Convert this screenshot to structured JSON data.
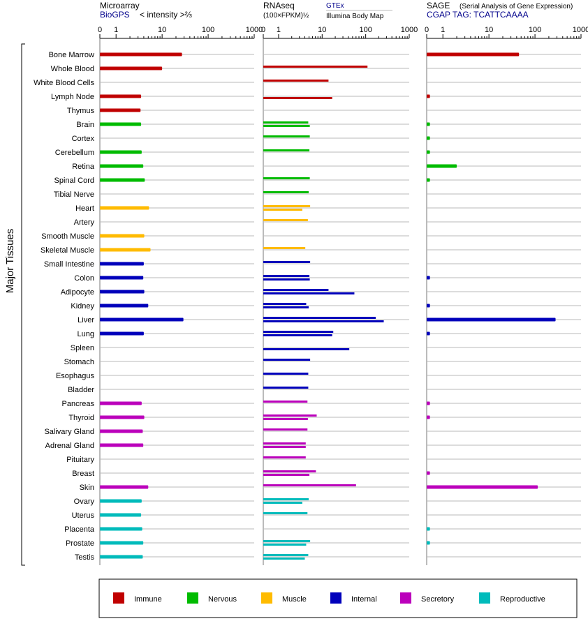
{
  "row_axis_label": "Major Tissues",
  "panels": [
    {
      "title": "Microarray",
      "subtitle_link": "BioGPS",
      "subtitle_text": "< intensity >⅔",
      "extra_top": "",
      "extra_bottom": ""
    },
    {
      "title": "RNAseq",
      "subtitle_link": "",
      "subtitle_text": "(100×FPKM)½",
      "extra_top": "GTEx",
      "extra_bottom": "Illumina Body Map"
    },
    {
      "title": "SAGE",
      "subtitle_link": "CGAP TAG: TCATTCAAAA",
      "subtitle_text": "",
      "extra_top": "(Serial Analysis of Gene Expression)",
      "extra_bottom": ""
    }
  ],
  "legend": [
    {
      "name": "Immune",
      "color": "#c00000"
    },
    {
      "name": "Nervous",
      "color": "#00bb00"
    },
    {
      "name": "Muscle",
      "color": "#ffbb00"
    },
    {
      "name": "Internal",
      "color": "#0000bb"
    },
    {
      "name": "Secretory",
      "color": "#bb00bb"
    },
    {
      "name": "Reproductive",
      "color": "#00bbbb"
    }
  ],
  "chart_data": {
    "type": "bar",
    "orientation": "horizontal",
    "x_scale": "log",
    "x_ticks": [
      "0",
      "1",
      "10",
      "100",
      "1000"
    ],
    "xlim": [
      0,
      1000
    ],
    "categories": [
      "Bone Marrow",
      "Whole Blood",
      "White Blood Cells",
      "Lymph Node",
      "Thymus",
      "Brain",
      "Cortex",
      "Cerebellum",
      "Retina",
      "Spinal Cord",
      "Tibial Nerve",
      "Heart",
      "Artery",
      "Smooth Muscle",
      "Skeletal Muscle",
      "Small Intestine",
      "Colon",
      "Adipocyte",
      "Kidney",
      "Liver",
      "Lung",
      "Spleen",
      "Stomach",
      "Esophagus",
      "Bladder",
      "Pancreas",
      "Thyroid",
      "Salivary Gland",
      "Adrenal Gland",
      "Pituitary",
      "Breast",
      "Skin",
      "Ovary",
      "Uterus",
      "Placenta",
      "Prostate",
      "Testis"
    ],
    "groups": [
      "Immune",
      "Immune",
      "Immune",
      "Immune",
      "Immune",
      "Nervous",
      "Nervous",
      "Nervous",
      "Nervous",
      "Nervous",
      "Nervous",
      "Muscle",
      "Muscle",
      "Muscle",
      "Muscle",
      "Internal",
      "Internal",
      "Internal",
      "Internal",
      "Internal",
      "Internal",
      "Internal",
      "Internal",
      "Internal",
      "Internal",
      "Secretory",
      "Secretory",
      "Secretory",
      "Secretory",
      "Secretory",
      "Secretory",
      "Secretory",
      "Reproductive",
      "Reproductive",
      "Reproductive",
      "Reproductive",
      "Reproductive"
    ],
    "series": [
      {
        "name": "Microarray",
        "values": [
          27,
          10,
          null,
          3.5,
          3.4,
          3.5,
          null,
          3.6,
          3.9,
          4.2,
          null,
          5.2,
          null,
          4.1,
          5.6,
          4.0,
          3.9,
          4.1,
          5.0,
          29,
          4.0,
          null,
          null,
          null,
          null,
          3.6,
          4.1,
          3.8,
          3.9,
          null,
          null,
          5.0,
          3.6,
          3.5,
          3.7,
          3.9,
          3.8
        ]
      },
      {
        "name": "GTEx",
        "values": [
          null,
          110,
          14,
          null,
          null,
          4.8,
          5.2,
          5.1,
          null,
          5.2,
          4.9,
          5.3,
          4.7,
          null,
          4.1,
          5.3,
          5.1,
          14,
          4.3,
          170,
          18,
          null,
          5.3,
          4.8,
          4.8,
          4.6,
          7.5,
          4.6,
          4.2,
          4.2,
          7.2,
          60,
          4.9,
          4.6,
          null,
          5.3,
          4.8
        ]
      },
      {
        "name": "Illumina Body Map",
        "values": [
          null,
          null,
          null,
          17,
          null,
          5.2,
          null,
          null,
          null,
          null,
          null,
          3.5,
          null,
          null,
          null,
          null,
          5.2,
          55,
          4.9,
          260,
          17,
          42,
          null,
          null,
          null,
          null,
          4.7,
          null,
          4.2,
          null,
          5.1,
          null,
          3.5,
          null,
          null,
          4.3,
          4.0
        ]
      },
      {
        "name": "SAGE",
        "values": [
          45,
          null,
          null,
          0.2,
          null,
          0.2,
          0.2,
          0.2,
          2.0,
          0.2,
          null,
          null,
          null,
          null,
          null,
          null,
          0.2,
          null,
          0.2,
          280,
          0.2,
          null,
          null,
          null,
          null,
          0.2,
          0.2,
          null,
          null,
          null,
          0.2,
          115,
          null,
          null,
          0.2,
          0.2,
          null
        ]
      }
    ]
  }
}
